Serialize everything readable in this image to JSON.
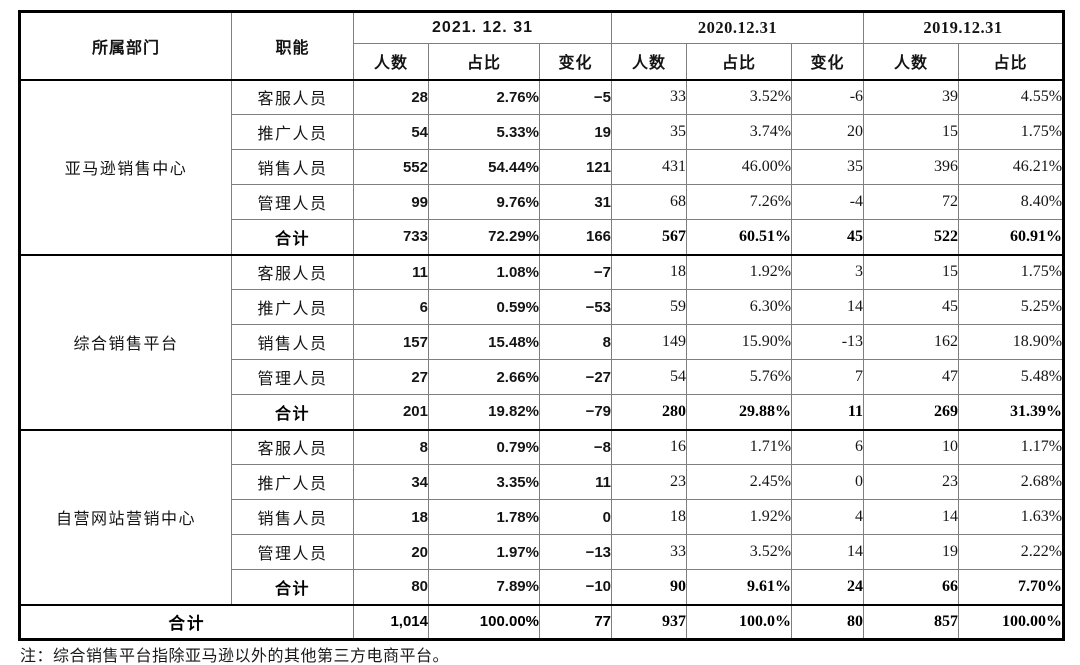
{
  "note": "注：综合销售平台指除亚马逊以外的其他第三方电商平台。",
  "table": {
    "header": {
      "dept": "所属部门",
      "role": "职能",
      "periods": [
        {
          "label": "2021. 12. 31",
          "style": "sans",
          "columns": [
            "人数",
            "占比",
            "变化"
          ]
        },
        {
          "label": "2020.12.31",
          "style": "serif",
          "columns": [
            "人数",
            "占比",
            "变化"
          ]
        },
        {
          "label": "2019.12.31",
          "style": "serif",
          "columns": [
            "人数",
            "占比"
          ]
        }
      ]
    },
    "column_semantics": [
      "headcount-2021",
      "ratio-2021",
      "change-2021",
      "headcount-2020",
      "ratio-2020",
      "change-2020",
      "headcount-2019",
      "ratio-2019"
    ],
    "groups": [
      {
        "dept": "亚马逊销售中心",
        "rows": [
          {
            "role": "客服人员",
            "subtotal": false,
            "values": [
              "28",
              "2.76%",
              "−5",
              "33",
              "3.52%",
              "-6",
              "39",
              "4.55%"
            ]
          },
          {
            "role": "推广人员",
            "subtotal": false,
            "values": [
              "54",
              "5.33%",
              "19",
              "35",
              "3.74%",
              "20",
              "15",
              "1.75%"
            ]
          },
          {
            "role": "销售人员",
            "subtotal": false,
            "values": [
              "552",
              "54.44%",
              "121",
              "431",
              "46.00%",
              "35",
              "396",
              "46.21%"
            ]
          },
          {
            "role": "管理人员",
            "subtotal": false,
            "values": [
              "99",
              "9.76%",
              "31",
              "68",
              "7.26%",
              "-4",
              "72",
              "8.40%"
            ]
          },
          {
            "role": "合计",
            "subtotal": true,
            "values": [
              "733",
              "72.29%",
              "166",
              "567",
              "60.51%",
              "45",
              "522",
              "60.91%"
            ]
          }
        ]
      },
      {
        "dept": "综合销售平台",
        "rows": [
          {
            "role": "客服人员",
            "subtotal": false,
            "values": [
              "11",
              "1.08%",
              "−7",
              "18",
              "1.92%",
              "3",
              "15",
              "1.75%"
            ]
          },
          {
            "role": "推广人员",
            "subtotal": false,
            "values": [
              "6",
              "0.59%",
              "−53",
              "59",
              "6.30%",
              "14",
              "45",
              "5.25%"
            ]
          },
          {
            "role": "销售人员",
            "subtotal": false,
            "values": [
              "157",
              "15.48%",
              "8",
              "149",
              "15.90%",
              "-13",
              "162",
              "18.90%"
            ]
          },
          {
            "role": "管理人员",
            "subtotal": false,
            "values": [
              "27",
              "2.66%",
              "−27",
              "54",
              "5.76%",
              "7",
              "47",
              "5.48%"
            ]
          },
          {
            "role": "合计",
            "subtotal": true,
            "values": [
              "201",
              "19.82%",
              "−79",
              "280",
              "29.88%",
              "11",
              "269",
              "31.39%"
            ]
          }
        ]
      },
      {
        "dept": "自营网站营销中心",
        "rows": [
          {
            "role": "客服人员",
            "subtotal": false,
            "values": [
              "8",
              "0.79%",
              "−8",
              "16",
              "1.71%",
              "6",
              "10",
              "1.17%"
            ]
          },
          {
            "role": "推广人员",
            "subtotal": false,
            "values": [
              "34",
              "3.35%",
              "11",
              "23",
              "2.45%",
              "0",
              "23",
              "2.68%"
            ]
          },
          {
            "role": "销售人员",
            "subtotal": false,
            "values": [
              "18",
              "1.78%",
              "0",
              "18",
              "1.92%",
              "4",
              "14",
              "1.63%"
            ]
          },
          {
            "role": "管理人员",
            "subtotal": false,
            "values": [
              "20",
              "1.97%",
              "−13",
              "33",
              "3.52%",
              "14",
              "19",
              "2.22%"
            ]
          },
          {
            "role": "合计",
            "subtotal": true,
            "values": [
              "80",
              "7.89%",
              "−10",
              "90",
              "9.61%",
              "24",
              "66",
              "7.70%"
            ]
          }
        ]
      }
    ],
    "grand_total": {
      "label": "合计",
      "values": [
        "1,014",
        "100.00%",
        "77",
        "937",
        "100.0%",
        "80",
        "857",
        "100.00%"
      ]
    }
  }
}
